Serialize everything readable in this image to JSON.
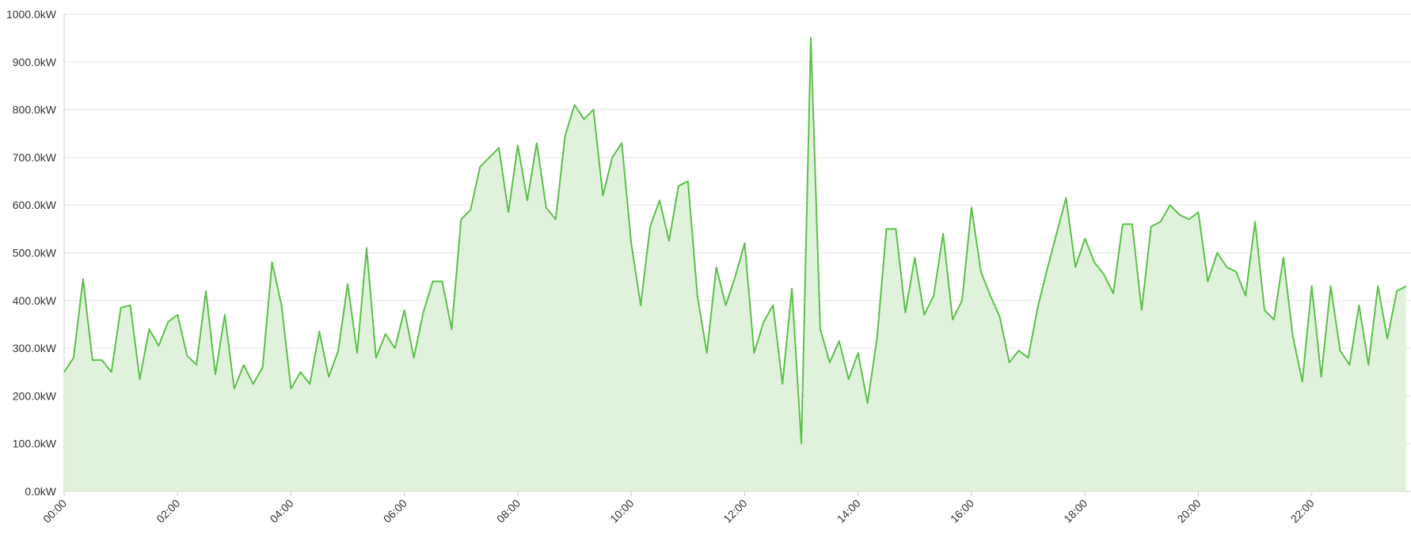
{
  "chart_data": {
    "type": "area",
    "x": [
      0,
      10,
      20,
      30,
      40,
      50,
      60,
      70,
      80,
      90,
      100,
      110,
      120,
      130,
      140,
      150,
      160,
      170,
      180,
      190,
      200,
      210,
      220,
      230,
      240,
      250,
      260,
      270,
      280,
      290,
      300,
      310,
      320,
      330,
      340,
      350,
      360,
      370,
      380,
      390,
      400,
      410,
      420,
      430,
      440,
      450,
      460,
      470,
      480,
      490,
      500,
      510,
      520,
      530,
      540,
      550,
      560,
      570,
      580,
      590,
      600,
      610,
      620,
      630,
      640,
      650,
      660,
      670,
      680,
      690,
      700,
      710,
      720,
      730,
      740,
      750,
      760,
      770,
      780,
      790,
      800,
      810,
      820,
      830,
      840,
      850,
      860,
      870,
      880,
      890,
      900,
      910,
      920,
      930,
      940,
      950,
      960,
      970,
      980,
      990,
      1000,
      1010,
      1020,
      1030,
      1040,
      1050,
      1060,
      1070,
      1080,
      1090,
      1100,
      1110,
      1120,
      1130,
      1140,
      1150,
      1160,
      1170,
      1180,
      1190,
      1200,
      1210,
      1220,
      1230,
      1240,
      1250,
      1260,
      1270,
      1280,
      1290,
      1300,
      1310,
      1320,
      1330,
      1340,
      1350,
      1360,
      1370,
      1380,
      1390,
      1400,
      1410,
      1420
    ],
    "series": [
      {
        "color": "#5cc04a",
        "fill": "#e0f2dc",
        "values": [
          250,
          280,
          445,
          275,
          275,
          250,
          385,
          390,
          235,
          340,
          305,
          355,
          370,
          285,
          265,
          420,
          245,
          370,
          215,
          265,
          225,
          260,
          480,
          390,
          215,
          250,
          225,
          335,
          240,
          295,
          435,
          290,
          510,
          280,
          330,
          300,
          380,
          280,
          375,
          440,
          440,
          340,
          570,
          590,
          680,
          700,
          720,
          585,
          725,
          610,
          730,
          595,
          570,
          745,
          810,
          780,
          800,
          620,
          700,
          730,
          520,
          390,
          555,
          610,
          525,
          640,
          650,
          410,
          290,
          470,
          390,
          450,
          520,
          290,
          355,
          390,
          225,
          425,
          100,
          950,
          340,
          270,
          315,
          235,
          290,
          185,
          320,
          550,
          550,
          375,
          490,
          370,
          410,
          540,
          360,
          400,
          595,
          460,
          410,
          365,
          270,
          295,
          280,
          385,
          465,
          540,
          615,
          470,
          530,
          480,
          455,
          415,
          560,
          560,
          380,
          555,
          565,
          600,
          580,
          570,
          585,
          440,
          500,
          470,
          460,
          410,
          565,
          380,
          360,
          490,
          325,
          230,
          430,
          240,
          430,
          295,
          265,
          390,
          265,
          430,
          320,
          420,
          430
        ]
      }
    ],
    "xlim": [
      0,
      1425
    ],
    "xticks": [
      {
        "value": 0,
        "label": "00:00"
      },
      {
        "value": 120,
        "label": "02:00"
      },
      {
        "value": 240,
        "label": "04:00"
      },
      {
        "value": 360,
        "label": "06:00"
      },
      {
        "value": 480,
        "label": "08:00"
      },
      {
        "value": 600,
        "label": "10:00"
      },
      {
        "value": 720,
        "label": "12:00"
      },
      {
        "value": 840,
        "label": "14:00"
      },
      {
        "value": 960,
        "label": "16:00"
      },
      {
        "value": 1080,
        "label": "18:00"
      },
      {
        "value": 1200,
        "label": "20:00"
      },
      {
        "value": 1320,
        "label": "22:00"
      }
    ],
    "ylim": [
      0,
      1000
    ],
    "yticks": [
      {
        "value": 0,
        "label": "0.0kW"
      },
      {
        "value": 100,
        "label": "100.0kW"
      },
      {
        "value": 200,
        "label": "200.0kW"
      },
      {
        "value": 300,
        "label": "300.0kW"
      },
      {
        "value": 400,
        "label": "400.0kW"
      },
      {
        "value": 500,
        "label": "500.0kW"
      },
      {
        "value": 600,
        "label": "600.0kW"
      },
      {
        "value": 700,
        "label": "700.0kW"
      },
      {
        "value": 800,
        "label": "800.0kW"
      },
      {
        "value": 900,
        "label": "900.0kW"
      },
      {
        "value": 1000,
        "label": "1000.0kW"
      }
    ],
    "grid": true
  }
}
